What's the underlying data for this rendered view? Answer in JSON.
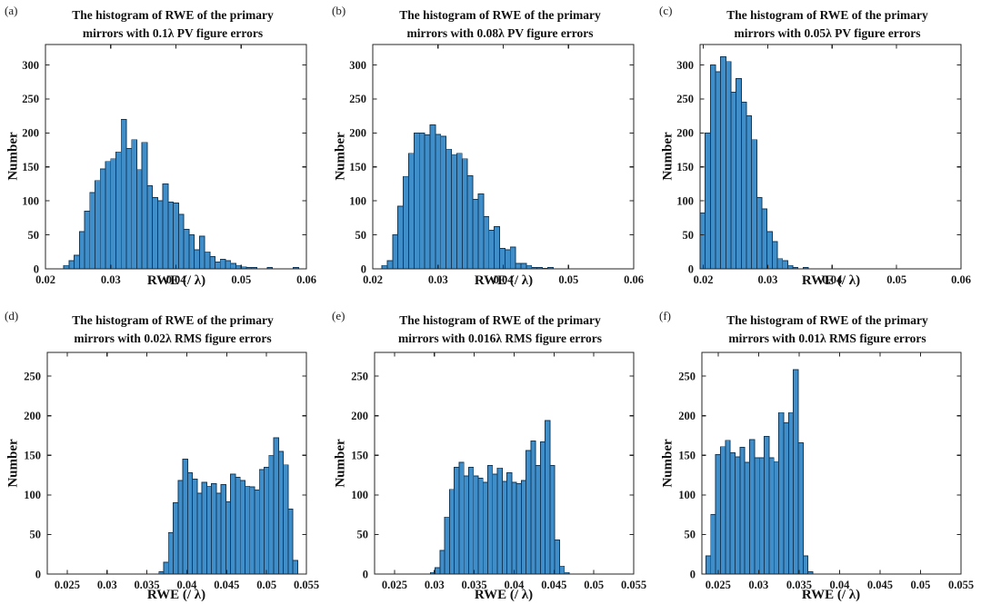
{
  "figure": {
    "style": {
      "background": "#ffffff",
      "bar_fill": "#3f8ec9",
      "bar_edge": "#123a5c",
      "axis_color": "#262626",
      "text_color": "#1a1a1a"
    }
  },
  "chart_data": [
    {
      "type": "bar",
      "panel_label": "(a)",
      "title_line1": "The histogram of RWE of the primary",
      "title_line2": "mirrors with 0.1λ PV figure errors",
      "xlabel": "RWE (/ λ)",
      "ylabel": "Number",
      "xlim": [
        0.02,
        0.06
      ],
      "ylim": [
        0,
        330
      ],
      "xticks": [
        "0.02",
        "0.03",
        "0.04",
        "0.05",
        "0.06"
      ],
      "yticks": [
        0,
        50,
        100,
        150,
        200,
        250,
        300
      ],
      "grid": false,
      "bin_start": 0.0228,
      "bin_width": 0.0008,
      "values": [
        5,
        12,
        20,
        55,
        85,
        112,
        130,
        147,
        158,
        162,
        172,
        220,
        177,
        190,
        146,
        186,
        122,
        105,
        100,
        125,
        98,
        97,
        80,
        58,
        50,
        28,
        48,
        25,
        18,
        10,
        14,
        12,
        8,
        5,
        3,
        2,
        2,
        0,
        0,
        2,
        0,
        0,
        0,
        0,
        2
      ]
    },
    {
      "type": "bar",
      "panel_label": "(b)",
      "title_line1": "The histogram of RWE of the primary",
      "title_line2": "mirrors with 0.08λ PV figure errors",
      "xlabel": "RWE (/ λ)",
      "ylabel": "Number",
      "xlim": [
        0.02,
        0.06
      ],
      "ylim": [
        0,
        330
      ],
      "xticks": [
        "0.02",
        "0.03",
        "0.04",
        "0.05",
        "0.06"
      ],
      "yticks": [
        0,
        50,
        100,
        150,
        200,
        250,
        300
      ],
      "grid": false,
      "bin_start": 0.0214,
      "bin_width": 0.00082,
      "values": [
        5,
        12,
        50,
        92,
        136,
        170,
        200,
        200,
        197,
        212,
        198,
        195,
        176,
        168,
        170,
        162,
        137,
        102,
        110,
        77,
        57,
        62,
        30,
        28,
        32,
        8,
        8,
        5,
        2,
        2,
        1,
        2
      ]
    },
    {
      "type": "bar",
      "panel_label": "(c)",
      "title_line1": "The histogram of RWE of the primary",
      "title_line2": "mirrors with 0.05λ PV figure errors",
      "xlabel": "RWE (/ λ)",
      "ylabel": "Number",
      "xlim": [
        0.0195,
        0.06
      ],
      "ylim": [
        0,
        330
      ],
      "xticks": [
        "0.02",
        "0.03",
        "0.04",
        "0.05",
        "0.06"
      ],
      "yticks": [
        0,
        50,
        100,
        150,
        200,
        250,
        300
      ],
      "grid": false,
      "bin_start": 0.0195,
      "bin_width": 0.0008,
      "values": [
        82,
        200,
        300,
        290,
        312,
        305,
        260,
        280,
        245,
        225,
        190,
        105,
        88,
        55,
        40,
        15,
        12,
        5,
        2,
        0,
        2
      ]
    },
    {
      "type": "bar",
      "panel_label": "(d)",
      "title_line1": "The histogram of RWE of the primary",
      "title_line2": "mirrors with 0.02λ RMS figure errors",
      "xlabel": "RWE (/ λ)",
      "ylabel": "Number",
      "xlim": [
        0.0225,
        0.055
      ],
      "ylim": [
        0,
        280
      ],
      "xticks": [
        "0.025",
        "0.03",
        "0.035",
        "0.04",
        "0.045",
        "0.05",
        "0.055"
      ],
      "yticks": [
        0,
        50,
        100,
        150,
        200,
        250
      ],
      "grid": false,
      "bin_start": 0.0365,
      "bin_width": 0.0006,
      "values": [
        3,
        15,
        52,
        90,
        118,
        145,
        128,
        120,
        102,
        116,
        111,
        114,
        102,
        113,
        91,
        126,
        122,
        118,
        111,
        110,
        106,
        132,
        135,
        150,
        172,
        155,
        138,
        82,
        17
      ]
    },
    {
      "type": "bar",
      "panel_label": "(e)",
      "title_line1": "The histogram of RWE of the primary",
      "title_line2": "mirrors with 0.016λ RMS figure errors",
      "xlabel": "RWE (/ λ)",
      "ylabel": "Number",
      "xlim": [
        0.0225,
        0.055
      ],
      "ylim": [
        0,
        280
      ],
      "xticks": [
        "0.025",
        "0.03",
        "0.035",
        "0.04",
        "0.045",
        "0.05",
        "0.055"
      ],
      "yticks": [
        0,
        50,
        100,
        150,
        200,
        250
      ],
      "grid": false,
      "bin_start": 0.0295,
      "bin_width": 0.0006,
      "values": [
        2,
        8,
        30,
        72,
        107,
        135,
        141,
        124,
        135,
        124,
        121,
        116,
        137,
        126,
        134,
        117,
        128,
        116,
        114,
        118,
        156,
        168,
        137,
        167,
        194,
        137,
        43,
        10,
        2
      ]
    },
    {
      "type": "bar",
      "panel_label": "(f)",
      "title_line1": "The histogram of RWE of the primary",
      "title_line2": "mirrors with 0.01λ RMS figure errors",
      "xlabel": "RWE (/ λ)",
      "ylabel": "Number",
      "xlim": [
        0.023,
        0.055
      ],
      "ylim": [
        0,
        280
      ],
      "xticks": [
        "0.025",
        "0.03",
        "0.035",
        "0.04",
        "0.045",
        "0.05",
        "0.055"
      ],
      "yticks": [
        0,
        50,
        100,
        150,
        200,
        250
      ],
      "grid": false,
      "bin_start": 0.0235,
      "bin_width": 0.0006,
      "values": [
        23,
        75,
        151,
        161,
        169,
        153,
        148,
        160,
        141,
        170,
        147,
        147,
        174,
        147,
        142,
        204,
        191,
        204,
        258,
        166,
        23,
        3
      ]
    }
  ]
}
